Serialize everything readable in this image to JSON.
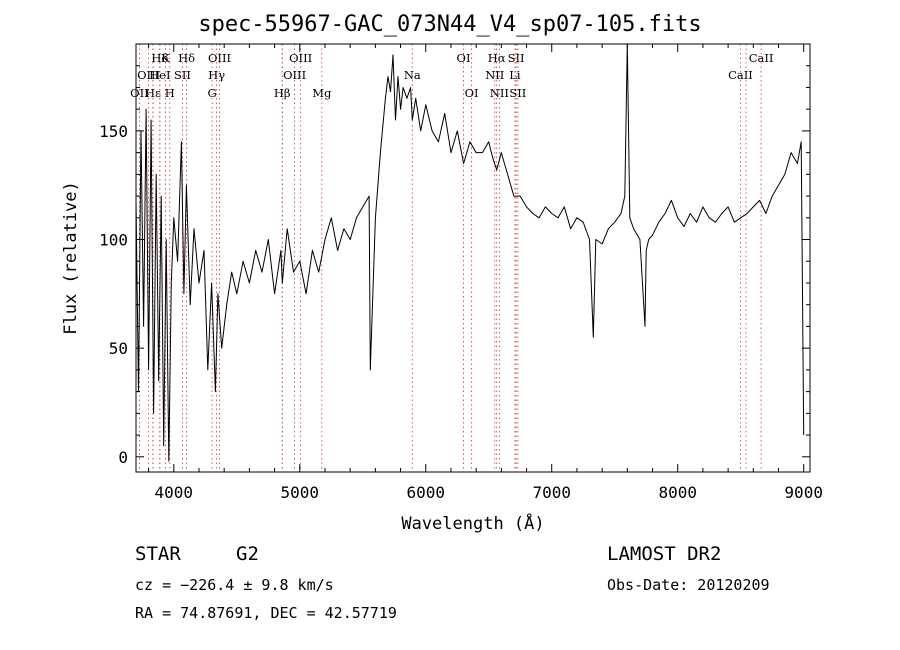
{
  "chart_data": {
    "type": "line",
    "title": "spec-55967-GAC_073N44_V4_sp07-105.fits",
    "xlabel": "Wavelength (Å)",
    "ylabel": "Flux (relative)",
    "xlim": [
      3700,
      9050
    ],
    "ylim": [
      -7,
      190
    ],
    "xticks": [
      4000,
      5000,
      6000,
      7000,
      8000,
      9000
    ],
    "yticks": [
      0,
      50,
      100,
      150
    ],
    "series": [
      {
        "x": [
          3700,
          3720,
          3740,
          3760,
          3780,
          3800,
          3820,
          3840,
          3860,
          3880,
          3900,
          3920,
          3940,
          3960,
          3980,
          4000,
          4030,
          4060,
          4080,
          4100,
          4130,
          4160,
          4200,
          4240,
          4270,
          4300,
          4330,
          4350,
          4380,
          4420,
          4460,
          4500,
          4550,
          4600,
          4650,
          4700,
          4750,
          4800,
          4850,
          4861,
          4900,
          4950,
          5000,
          5050,
          5100,
          5150,
          5200,
          5250,
          5300,
          5350,
          5400,
          5450,
          5500,
          5550,
          5560,
          5600,
          5640,
          5680,
          5700,
          5720,
          5740,
          5760,
          5780,
          5800,
          5820,
          5850,
          5880,
          5893,
          5920,
          5960,
          6000,
          6050,
          6100,
          6150,
          6200,
          6250,
          6300,
          6350,
          6400,
          6450,
          6500,
          6530,
          6563,
          6600,
          6650,
          6700,
          6750,
          6800,
          6850,
          6900,
          6950,
          7000,
          7050,
          7100,
          7150,
          7200,
          7250,
          7300,
          7330,
          7350,
          7400,
          7450,
          7500,
          7550,
          7580,
          7600,
          7620,
          7650,
          7700,
          7740,
          7750,
          7770,
          7800,
          7850,
          7900,
          7950,
          8000,
          8050,
          8100,
          8150,
          8200,
          8250,
          8300,
          8350,
          8400,
          8450,
          8500,
          8550,
          8600,
          8650,
          8700,
          8750,
          8800,
          8850,
          8900,
          8950,
          8980,
          9000
        ],
        "y": [
          118,
          30,
          150,
          60,
          160,
          40,
          155,
          20,
          130,
          35,
          120,
          5,
          100,
          -2,
          80,
          110,
          90,
          145,
          75,
          125,
          70,
          105,
          80,
          95,
          40,
          80,
          30,
          75,
          50,
          70,
          85,
          75,
          90,
          80,
          95,
          85,
          100,
          75,
          95,
          80,
          105,
          85,
          90,
          75,
          95,
          85,
          100,
          110,
          95,
          105,
          100,
          110,
          115,
          120,
          40,
          110,
          140,
          165,
          175,
          168,
          185,
          155,
          175,
          160,
          170,
          165,
          170,
          155,
          165,
          150,
          162,
          150,
          145,
          158,
          140,
          150,
          135,
          145,
          140,
          140,
          145,
          138,
          132,
          140,
          130,
          120,
          120,
          115,
          112,
          110,
          115,
          112,
          110,
          115,
          105,
          110,
          108,
          100,
          55,
          100,
          98,
          105,
          108,
          112,
          120,
          192,
          110,
          105,
          100,
          60,
          95,
          100,
          102,
          108,
          112,
          118,
          110,
          106,
          112,
          108,
          115,
          110,
          108,
          112,
          115,
          108,
          110,
          112,
          115,
          118,
          112,
          120,
          125,
          130,
          140,
          135,
          145,
          10
        ]
      }
    ],
    "lines": [
      {
        "name": "Hδ",
        "x": 3889,
        "row": 0
      },
      {
        "name": "K",
        "x": 3934,
        "row": 0
      },
      {
        "name": "Hδ",
        "x": 4102,
        "row": 0
      },
      {
        "name": "OIII",
        "x": 4363,
        "row": 0
      },
      {
        "name": "OIII",
        "x": 5007,
        "row": 0
      },
      {
        "name": "OI",
        "x": 6300,
        "row": 0
      },
      {
        "name": "Hα",
        "x": 6563,
        "row": 0
      },
      {
        "name": "SII",
        "x": 6717,
        "row": 0
      },
      {
        "name": "CaII",
        "x": 8662,
        "row": 0
      },
      {
        "name": "OIII",
        "x": 3800,
        "row": 1
      },
      {
        "name": "HeI",
        "x": 3889,
        "row": 1
      },
      {
        "name": "SII",
        "x": 4069,
        "row": 1
      },
      {
        "name": "Hγ",
        "x": 4340,
        "row": 1
      },
      {
        "name": "OIII",
        "x": 4959,
        "row": 1
      },
      {
        "name": "Na",
        "x": 5893,
        "row": 1
      },
      {
        "name": "NII",
        "x": 6548,
        "row": 1
      },
      {
        "name": "Li",
        "x": 6708,
        "row": 1
      },
      {
        "name": "CaII",
        "x": 8498,
        "row": 1
      },
      {
        "name": "OII",
        "x": 3727,
        "row": 2
      },
      {
        "name": "Hε",
        "x": 3835,
        "row": 2
      },
      {
        "name": "H",
        "x": 3968,
        "row": 2
      },
      {
        "name": "G",
        "x": 4304,
        "row": 2
      },
      {
        "name": "Hβ",
        "x": 4861,
        "row": 2
      },
      {
        "name": "Mg",
        "x": 5175,
        "row": 2
      },
      {
        "name": "OI",
        "x": 6364,
        "row": 2
      },
      {
        "name": "NII",
        "x": 6584,
        "row": 2
      },
      {
        "name": "SII",
        "x": 6731,
        "row": 2
      }
    ],
    "extra_lines_x": [
      8542,
      3835,
      4861
    ]
  },
  "info": {
    "class_label": "STAR",
    "subclass_label": "G2",
    "survey": "LAMOST DR2",
    "redshift_line": "cz = −226.4 ± 9.8 km/s",
    "obs_date": "Obs-Date: 20120209",
    "coords": "RA =  74.87691, DEC =  42.57719"
  },
  "colors": {
    "line_marker": "#cc3333",
    "spectrum": "#000000",
    "axes": "#000000"
  }
}
